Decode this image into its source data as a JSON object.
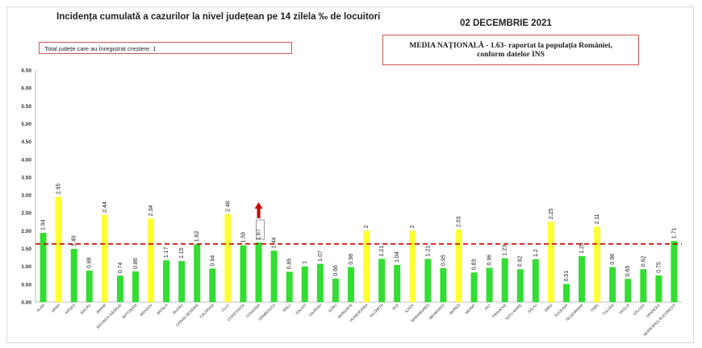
{
  "header": {
    "title": "Incidența cumulată a cazurilor la nivel județean pe 14 zilela ‰ de locuitori",
    "date": "02 DECEMBRIE 2021"
  },
  "info_box": {
    "text": "Total județe care au înregistrat creștere: 1"
  },
  "national_box": {
    "line1": "MEDIA NAȚIONALĂ - 1.63- raportat la populația României,",
    "line2": "conform datelor INS"
  },
  "colors": {
    "green": "#33dd33",
    "yellow": "#ffff33",
    "refline": "#cc0000",
    "arrow": "#cc0000",
    "axis": "#888888"
  },
  "chart_data": {
    "type": "bar",
    "categories": [
      "ALBA",
      "ARAD",
      "ARGEȘ",
      "BACĂU",
      "BIHOR",
      "BISTRIȚA-NĂSĂUD",
      "BOTOȘANI",
      "BRAȘOV",
      "BRĂILA",
      "BUZĂU",
      "CARAȘ-SEVERIN",
      "CĂLĂRAȘI",
      "CLUJ",
      "CONSTANȚA",
      "COVASNA",
      "DÂMBOVIȚA",
      "DOLJ",
      "GALAȚI",
      "GIURGIU",
      "GORJ",
      "HARGHITA",
      "HUNEDOARA",
      "IALOMIȚA",
      "IAȘI",
      "ILFOV",
      "MARAMUREȘ",
      "MEHEDINȚI",
      "MUREȘ",
      "NEAMȚ",
      "OLT",
      "PRAHOVA",
      "SATU MARE",
      "SĂLAJ",
      "SIBIU",
      "SUCEAVA",
      "TELEORMAN",
      "TIMIȘ",
      "TULCEA",
      "VASLUI",
      "VÂLCEA",
      "VRANCEA",
      "MUNICIPIUL BUCUREȘTI"
    ],
    "values": [
      1.94,
      2.95,
      1.49,
      0.88,
      2.44,
      0.74,
      0.86,
      2.34,
      1.17,
      1.15,
      1.62,
      0.94,
      2.46,
      1.59,
      1.67,
      1.44,
      0.85,
      1,
      1.07,
      0.66,
      0.98,
      2,
      1.21,
      1.04,
      2,
      1.21,
      0.95,
      2.03,
      0.83,
      0.96,
      1.23,
      0.92,
      1.2,
      2.25,
      0.51,
      1.29,
      2.11,
      0.98,
      0.65,
      0.92,
      0.75,
      1.71
    ],
    "value_labels": [
      "1.94",
      "2.95",
      "1.49",
      "0.88",
      "2.44",
      "0.74",
      "0.86",
      "2.34",
      "1.17",
      "1.15",
      "1.62",
      "0.94",
      "2.46",
      "1.59",
      "1.67",
      "1.44",
      "0.85",
      "1",
      "1.07",
      "0.66",
      "0.98",
      "2",
      "1.21",
      "1.04",
      "2",
      "1.21",
      "0.95",
      "2.03",
      "0.83",
      "0.96",
      "1.23",
      "0.92",
      "1.2",
      "2.25",
      "0.51",
      "1.29",
      "2.11",
      "0.98",
      "0.65",
      "0.92",
      "0.75",
      "1.71"
    ],
    "highlight": [
      false,
      true,
      false,
      false,
      true,
      false,
      false,
      true,
      false,
      false,
      false,
      false,
      true,
      false,
      false,
      false,
      false,
      false,
      false,
      false,
      false,
      true,
      false,
      false,
      true,
      false,
      false,
      true,
      false,
      false,
      false,
      false,
      false,
      true,
      false,
      false,
      true,
      false,
      false,
      false,
      false,
      false
    ],
    "increase_marker_index": 14,
    "ylim": [
      0,
      6.5
    ],
    "yticks": [
      "0.00",
      "0.50",
      "1.00",
      "1.50",
      "2.00",
      "2.50",
      "3.00",
      "3.50",
      "4.00",
      "4.50",
      "5.00",
      "5.50",
      "6.00",
      "6.50"
    ],
    "reference_line": 1.63,
    "grid": false,
    "xlabel": "",
    "ylabel": ""
  }
}
